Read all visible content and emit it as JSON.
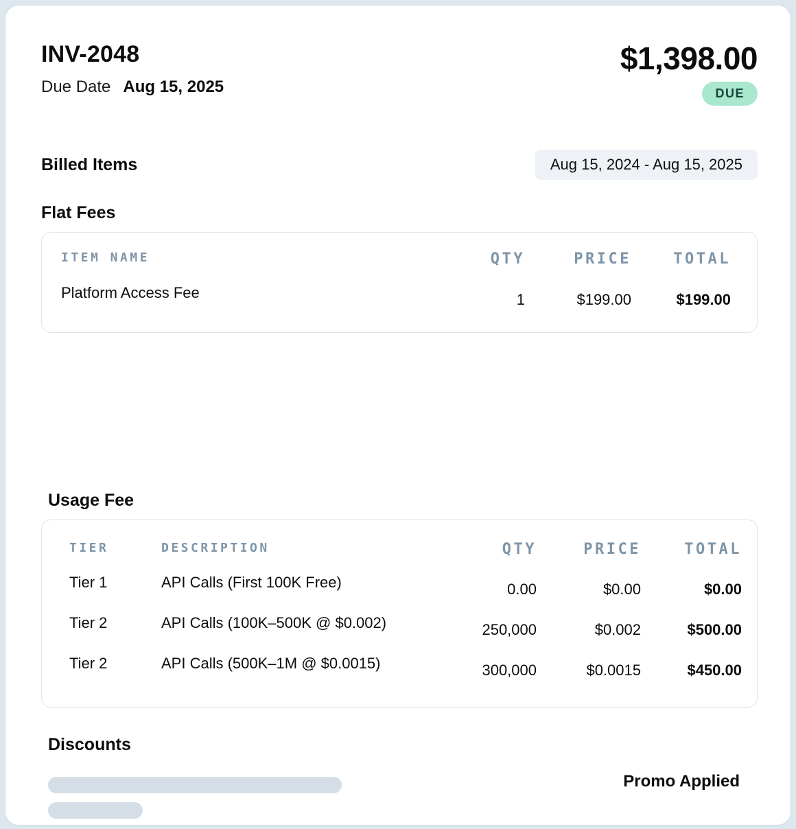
{
  "header": {
    "invoice_number": "INV-2048",
    "due_date_label": "Due Date",
    "due_date_value": "Aug 15, 2025",
    "amount": "$1,398.00",
    "status_badge": "DUE"
  },
  "billing_period": "Aug 15, 2024 - Aug 15, 2025",
  "billed_items_title": "Billed Items",
  "flat_fees": {
    "title": "Flat Fees",
    "columns": [
      "ITEM NAME",
      "QTY",
      "PRICE",
      "TOTAL"
    ],
    "rows": [
      {
        "item": "Platform Access Fee",
        "qty": "1",
        "price": "$199.00",
        "total": "$199.00"
      }
    ]
  },
  "usage_fee": {
    "title": "Usage Fee",
    "columns": [
      "TIER",
      "DESCRIPTION",
      "QTY",
      "PRICE",
      "TOTAL"
    ],
    "rows": [
      {
        "tier": "Tier 1",
        "description": "API Calls (First 100K Free)",
        "qty": "0.00",
        "price": "$0.00",
        "total": "$0.00"
      },
      {
        "tier": "Tier 2",
        "description": "API Calls (100K–500K @ $0.002)",
        "qty": "250,000",
        "price": "$0.002",
        "total": "$500.00"
      },
      {
        "tier": "Tier 2",
        "description": "API Calls (500K–1M @ $0.0015)",
        "qty": "300,000",
        "price": "$0.0015",
        "total": "$450.00"
      }
    ]
  },
  "discounts": {
    "title": "Discounts",
    "promo_label": "Promo Applied"
  },
  "colors": {
    "badge_bg": "#a9e8cf",
    "badge_text": "#17443a",
    "table_header_text": "#7e95a9",
    "card_border": "#dbe5ec",
    "skeleton_bar": "#d5dee6",
    "period_pill_bg": "#eef1f5",
    "page_bg": "#dde7ee"
  }
}
